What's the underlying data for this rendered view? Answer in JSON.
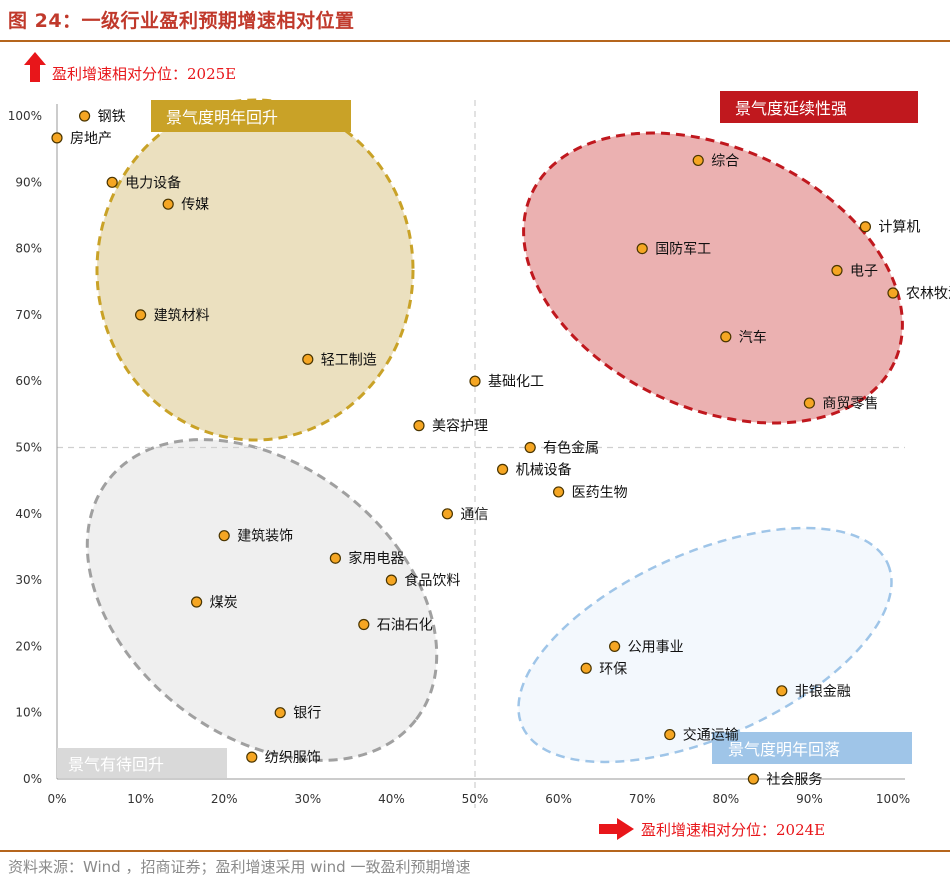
{
  "figure_title": "图 24：一级行业盈利预期增速相对位置",
  "source": "资料来源：Wind ，招商证券；盈利增速采用 wind 一致盈利预期增速",
  "colors": {
    "title": "#c0392b",
    "point_fill": "#f5a623",
    "point_stroke": "#4a3500",
    "arrow": "#e8161a",
    "zone_top_left": "#c9a227",
    "zone_top_right": "#c0181e",
    "zone_bottom_left": "#8e8e8e",
    "zone_bottom_right": "#6fa8dc"
  },
  "chart_data": {
    "type": "scatter",
    "ylabel": "盈利增速相对分位：2025E",
    "xlabel": "盈利增速相对分位：2024E",
    "xlim": [
      0,
      100
    ],
    "ylim": [
      0,
      100
    ],
    "x_ticks": [
      "0%",
      "10%",
      "20%",
      "30%",
      "40%",
      "50%",
      "60%",
      "70%",
      "80%",
      "90%",
      "100%"
    ],
    "y_ticks": [
      "0%",
      "10%",
      "20%",
      "30%",
      "40%",
      "50%",
      "60%",
      "70%",
      "80%",
      "90%",
      "100%"
    ],
    "reference_lines": {
      "x": 50,
      "y": 50
    },
    "quadrants": [
      {
        "label": "景气度明年回升",
        "position": "top-left"
      },
      {
        "label": "景气度延续性强",
        "position": "top-right"
      },
      {
        "label": "景气有待回升",
        "position": "bottom-left"
      },
      {
        "label": "景气度明年回落",
        "position": "bottom-right"
      }
    ],
    "points": [
      {
        "name": "钢铁",
        "x": 3.3,
        "y": 100
      },
      {
        "name": "房地产",
        "x": 0,
        "y": 96.7
      },
      {
        "name": "电力设备",
        "x": 6.6,
        "y": 90
      },
      {
        "name": "传媒",
        "x": 13.3,
        "y": 86.7
      },
      {
        "name": "建筑材料",
        "x": 10,
        "y": 70
      },
      {
        "name": "轻工制造",
        "x": 30,
        "y": 63.3
      },
      {
        "name": "基础化工",
        "x": 50,
        "y": 60
      },
      {
        "name": "美容护理",
        "x": 43.3,
        "y": 53.3
      },
      {
        "name": "有色金属",
        "x": 56.6,
        "y": 50
      },
      {
        "name": "机械设备",
        "x": 53.3,
        "y": 46.7
      },
      {
        "name": "医药生物",
        "x": 60,
        "y": 43.3
      },
      {
        "name": "通信",
        "x": 46.7,
        "y": 40
      },
      {
        "name": "建筑装饰",
        "x": 20,
        "y": 36.7
      },
      {
        "name": "家用电器",
        "x": 33.3,
        "y": 33.3
      },
      {
        "name": "食品饮料",
        "x": 40,
        "y": 30
      },
      {
        "name": "煤炭",
        "x": 16.7,
        "y": 26.7
      },
      {
        "name": "石油石化",
        "x": 36.7,
        "y": 23.3
      },
      {
        "name": "银行",
        "x": 26.7,
        "y": 10
      },
      {
        "name": "纺织服饰",
        "x": 23.3,
        "y": 3.3
      },
      {
        "name": "综合",
        "x": 76.7,
        "y": 93.3
      },
      {
        "name": "计算机",
        "x": 96.7,
        "y": 83.3
      },
      {
        "name": "国防军工",
        "x": 70,
        "y": 80
      },
      {
        "name": "电子",
        "x": 93.3,
        "y": 76.7
      },
      {
        "name": "农林牧渔",
        "x": 100,
        "y": 73.3
      },
      {
        "name": "汽车",
        "x": 80,
        "y": 66.7
      },
      {
        "name": "商贸零售",
        "x": 90,
        "y": 56.7
      },
      {
        "name": "公用事业",
        "x": 66.7,
        "y": 20
      },
      {
        "name": "环保",
        "x": 63.3,
        "y": 16.7
      },
      {
        "name": "非银金融",
        "x": 86.7,
        "y": 13.3
      },
      {
        "name": "交通运输",
        "x": 73.3,
        "y": 6.7
      },
      {
        "name": "社会服务",
        "x": 83.3,
        "y": 0
      }
    ]
  }
}
